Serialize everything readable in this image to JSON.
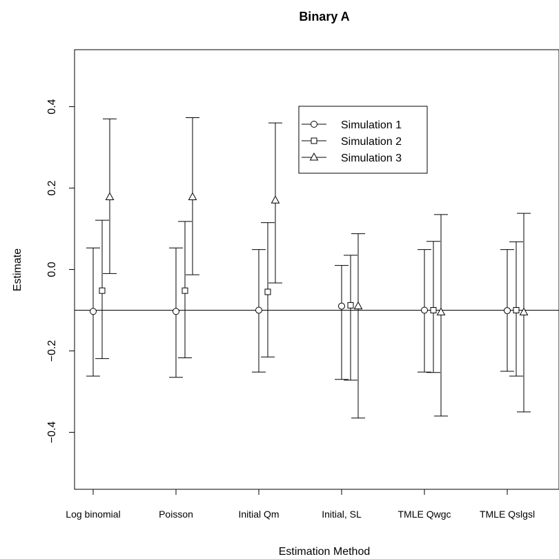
{
  "chart_data": {
    "type": "scatter",
    "title": "Binary A",
    "xlabel": "Estimation Method",
    "ylabel": "Estimate",
    "categories": [
      "Log binomial",
      "Poisson",
      "Initial Qm",
      "Initial, SL",
      "TMLE Qwgc",
      "TMLE Qslgsl"
    ],
    "ylim": [
      -0.54,
      0.54
    ],
    "yticks": [
      -0.4,
      -0.2,
      0.0,
      0.2,
      0.4
    ],
    "ytick_labels": [
      "−0.4",
      "−0.2",
      "0.0",
      "0.2",
      "0.4"
    ],
    "reference_line": -0.1,
    "grid": false,
    "legend_position": "top-right-inside",
    "series": [
      {
        "name": "Simulation 1",
        "marker": "circle",
        "estimate": [
          -0.103,
          -0.103,
          -0.1,
          -0.09,
          -0.1,
          -0.101
        ],
        "lower": [
          -0.262,
          -0.265,
          -0.252,
          -0.27,
          -0.252,
          -0.25
        ],
        "upper": [
          0.053,
          0.053,
          0.049,
          0.01,
          0.049,
          0.049
        ]
      },
      {
        "name": "Simulation 2",
        "marker": "square",
        "estimate": [
          -0.052,
          -0.052,
          -0.055,
          -0.088,
          -0.1,
          -0.1
        ],
        "lower": [
          -0.219,
          -0.217,
          -0.215,
          -0.272,
          -0.253,
          -0.262
        ],
        "upper": [
          0.121,
          0.118,
          0.115,
          0.035,
          0.069,
          0.068
        ]
      },
      {
        "name": "Simulation 3",
        "marker": "triangle",
        "estimate": [
          0.178,
          0.178,
          0.17,
          -0.09,
          -0.105,
          -0.105
        ],
        "lower": [
          -0.01,
          -0.013,
          -0.033,
          -0.365,
          -0.36,
          -0.35
        ],
        "upper": [
          0.37,
          0.373,
          0.36,
          0.088,
          0.135,
          0.138
        ]
      }
    ]
  }
}
